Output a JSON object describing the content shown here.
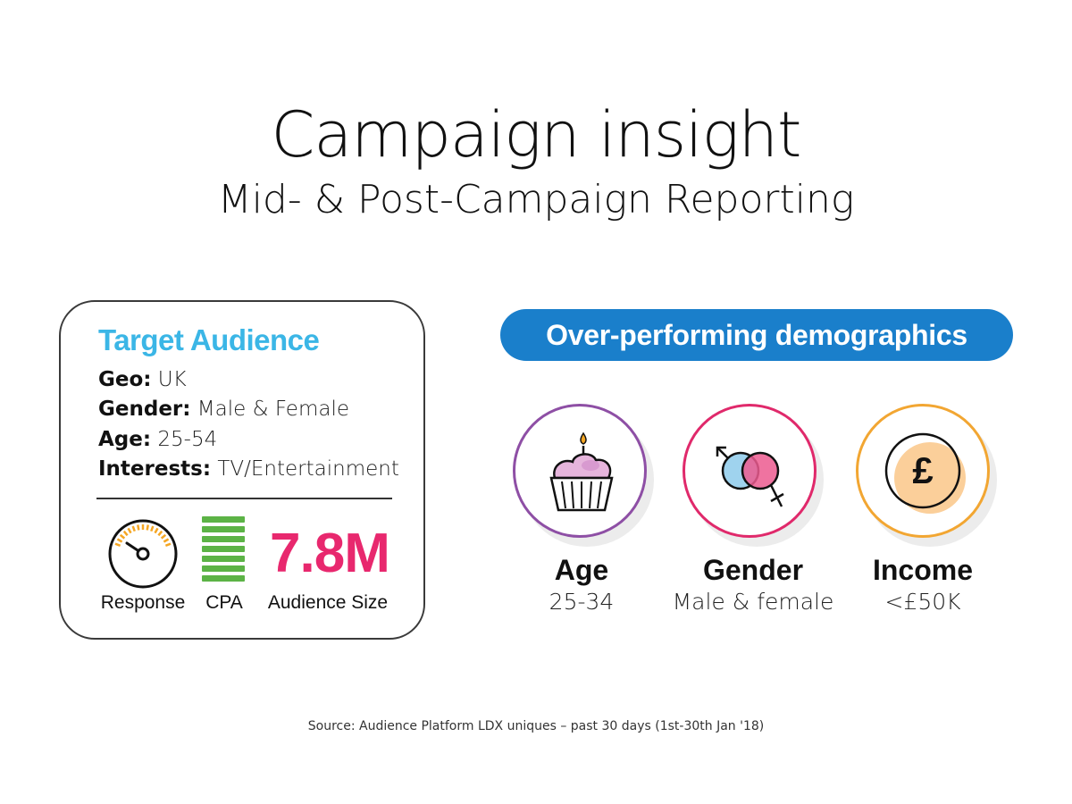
{
  "header": {
    "title": "Campaign insight",
    "subtitle": "Mid- & Post-Campaign Reporting"
  },
  "target_audience": {
    "heading": "Target Audience",
    "heading_color": "#3bb6e6",
    "rows": [
      {
        "label": "Geo:",
        "value": "UK"
      },
      {
        "label": "Gender:",
        "value": "Male & Female"
      },
      {
        "label": "Age:",
        "value": "25-54"
      },
      {
        "label": "Interests:",
        "value": "TV/Entertainment"
      }
    ],
    "metrics": {
      "response_label": "Response",
      "response_icon": "speedometer-icon",
      "cpa_label": "CPA",
      "cpa_icon": "level-bars-icon",
      "cpa_color": "#5cb346",
      "audience_size_value": "7.8M",
      "audience_size_label": "Audience Size",
      "audience_size_color": "#e8286e",
      "gauge_tick_color": "#f5a623"
    }
  },
  "demographics": {
    "pill_label": "Over-performing demographics",
    "pill_color": "#1a7fcb",
    "items": [
      {
        "label": "Age",
        "value": "25-34",
        "icon": "cupcake-icon",
        "ring_color": "#8e4fa5"
      },
      {
        "label": "Gender",
        "value": "Male & female",
        "icon": "gender-symbols-icon",
        "ring_color": "#e0296b"
      },
      {
        "label": "Income",
        "value": "<£50K",
        "icon": "pound-coin-icon",
        "ring_color": "#f2a632",
        "icon_glyph": "£"
      }
    ]
  },
  "footer": {
    "source": "Source: Audience Platform LDX uniques – past 30 days (1st-30th Jan '18)"
  }
}
